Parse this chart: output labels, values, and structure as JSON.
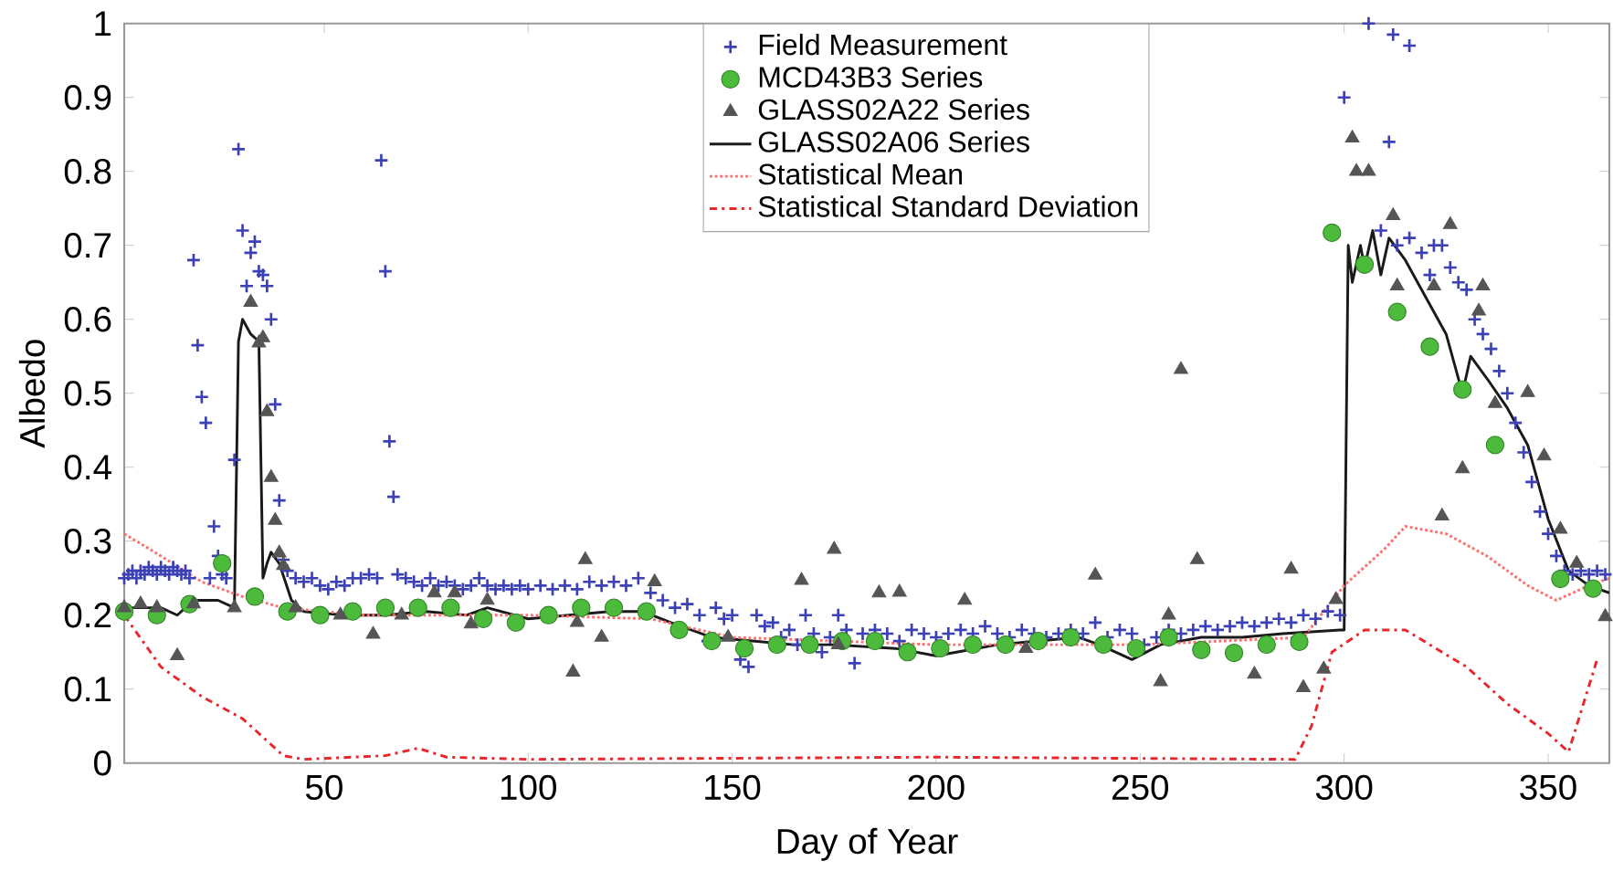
{
  "chart_data": {
    "type": "scatter",
    "xlabel": "Day of Year",
    "ylabel": "Albedo",
    "xlim": [
      1,
      365
    ],
    "ylim": [
      0,
      1
    ],
    "xticks": [
      50,
      100,
      150,
      200,
      250,
      300,
      350
    ],
    "yticks": [
      0,
      0.1,
      0.2,
      0.3,
      0.4,
      0.5,
      0.6,
      0.7,
      0.8,
      0.9,
      1
    ],
    "grid": false,
    "legend": "top",
    "series": [
      {
        "name": "Field Measurement",
        "marker": "cross",
        "color": "#3b40b4",
        "x": [
          1,
          2,
          3,
          4,
          5,
          6,
          7,
          8,
          9,
          10,
          11,
          12,
          13,
          14,
          15,
          16,
          17,
          18,
          19,
          20,
          21,
          22,
          23,
          24,
          25,
          26,
          28,
          29,
          30,
          31,
          32,
          33,
          34,
          35,
          36,
          37,
          38,
          39,
          40,
          41,
          43,
          45,
          47,
          49,
          51,
          53,
          55,
          57,
          59,
          61,
          63,
          64,
          65,
          66,
          67,
          68,
          70,
          72,
          74,
          76,
          78,
          80,
          82,
          84,
          86,
          88,
          90,
          92,
          94,
          96,
          98,
          100,
          103,
          106,
          109,
          112,
          115,
          118,
          121,
          124,
          127,
          130,
          133,
          136,
          139,
          142,
          144,
          146,
          148,
          150,
          152,
          154,
          156,
          158,
          160,
          162,
          164,
          166,
          168,
          170,
          172,
          174,
          176,
          178,
          180,
          182,
          185,
          188,
          191,
          194,
          197,
          200,
          203,
          206,
          209,
          212,
          215,
          218,
          221,
          224,
          227,
          230,
          233,
          236,
          239,
          242,
          245,
          248,
          251,
          254,
          257,
          260,
          263,
          266,
          269,
          272,
          275,
          278,
          281,
          284,
          287,
          290,
          293,
          296,
          299,
          300,
          306,
          309,
          311,
          312,
          313,
          316,
          316,
          319,
          321,
          322,
          324,
          326,
          328,
          330,
          332,
          334,
          336,
          338,
          340,
          342,
          344,
          346,
          348,
          350,
          352,
          354,
          356,
          358,
          360,
          362,
          364
        ],
        "values": [
          0.25,
          0.255,
          0.26,
          0.25,
          0.26,
          0.255,
          0.265,
          0.26,
          0.255,
          0.265,
          0.26,
          0.255,
          0.265,
          0.26,
          0.255,
          0.26,
          0.25,
          0.68,
          0.565,
          0.495,
          0.46,
          0.25,
          0.32,
          0.28,
          0.255,
          0.25,
          0.41,
          0.83,
          0.72,
          0.645,
          0.69,
          0.705,
          0.665,
          0.66,
          0.645,
          0.6,
          0.485,
          0.355,
          0.275,
          0.26,
          0.25,
          0.245,
          0.25,
          0.24,
          0.235,
          0.245,
          0.24,
          0.25,
          0.25,
          0.255,
          0.25,
          0.815,
          0.665,
          0.435,
          0.36,
          0.255,
          0.25,
          0.245,
          0.24,
          0.25,
          0.24,
          0.245,
          0.24,
          0.235,
          0.24,
          0.25,
          0.24,
          0.235,
          0.24,
          0.235,
          0.24,
          0.235,
          0.24,
          0.235,
          0.24,
          0.235,
          0.245,
          0.24,
          0.245,
          0.24,
          0.25,
          0.23,
          0.22,
          0.21,
          0.215,
          0.2,
          0.165,
          0.21,
          0.195,
          0.2,
          0.14,
          0.13,
          0.2,
          0.185,
          0.19,
          0.17,
          0.18,
          0.16,
          0.2,
          0.175,
          0.15,
          0.17,
          0.2,
          0.18,
          0.135,
          0.175,
          0.18,
          0.175,
          0.165,
          0.18,
          0.175,
          0.17,
          0.175,
          0.18,
          0.175,
          0.185,
          0.175,
          0.17,
          0.18,
          0.175,
          0.17,
          0.175,
          0.18,
          0.175,
          0.19,
          0.17,
          0.18,
          0.175,
          0.16,
          0.17,
          0.18,
          0.175,
          0.18,
          0.185,
          0.18,
          0.185,
          0.19,
          0.185,
          0.19,
          0.195,
          0.19,
          0.2,
          0.195,
          0.205,
          0.2,
          0.9,
          1.0,
          0.72,
          0.84,
          0.985,
          0.7,
          0.97,
          0.71,
          0.69,
          0.66,
          0.7,
          0.7,
          0.67,
          0.65,
          0.64,
          0.6,
          0.58,
          0.56,
          0.53,
          0.5,
          0.46,
          0.42,
          0.38,
          0.34,
          0.31,
          0.28,
          0.26,
          0.255,
          0.26,
          0.255,
          0.26,
          0.255
        ]
      },
      {
        "name": "MCD43B3 Series",
        "marker": "circle",
        "color": "#4cbb3c",
        "x": [
          1,
          9,
          17,
          25,
          33,
          41,
          49,
          57,
          65,
          73,
          81,
          89,
          97,
          105,
          113,
          121,
          129,
          137,
          145,
          153,
          161,
          169,
          177,
          185,
          193,
          201,
          209,
          217,
          225,
          233,
          241,
          249,
          257,
          265,
          273,
          281,
          289,
          297,
          305,
          313,
          321,
          329,
          337,
          353,
          361
        ],
        "values": [
          0.205,
          0.2,
          0.215,
          0.27,
          0.225,
          0.205,
          0.2,
          0.205,
          0.21,
          0.21,
          0.21,
          0.195,
          0.19,
          0.2,
          0.21,
          0.21,
          0.205,
          0.18,
          0.165,
          0.155,
          0.16,
          0.16,
          0.165,
          0.165,
          0.15,
          0.155,
          0.16,
          0.16,
          0.165,
          0.17,
          0.16,
          0.155,
          0.17,
          0.153,
          0.149,
          0.16,
          0.164,
          0.717,
          0.674,
          0.61,
          0.563,
          0.505,
          0.43,
          0.249,
          0.236
        ]
      },
      {
        "name": "GLASS02A22 Series",
        "marker": "triangle",
        "color": "#555555",
        "x": [
          1,
          5,
          9,
          14,
          18,
          28,
          32,
          34,
          35,
          36,
          37,
          38,
          39,
          40,
          43,
          54,
          62,
          69,
          77,
          82,
          86,
          90,
          111,
          112,
          114,
          118,
          131,
          149,
          167,
          175,
          176,
          186,
          191,
          207,
          222,
          239,
          255,
          257,
          260,
          264,
          278,
          287,
          290,
          295,
          298,
          302,
          303,
          306,
          312,
          313,
          322,
          324,
          326,
          329,
          333,
          334,
          337,
          345,
          349,
          353,
          357,
          364
        ],
        "values": [
          0.21,
          0.215,
          0.21,
          0.145,
          0.215,
          0.21,
          0.623,
          0.568,
          0.575,
          0.475,
          0.386,
          0.328,
          0.284,
          0.267,
          0.21,
          0.2,
          0.174,
          0.2,
          0.23,
          0.23,
          0.188,
          0.22,
          0.123,
          0.19,
          0.275,
          0.17,
          0.245,
          0.17,
          0.247,
          0.289,
          0.16,
          0.23,
          0.231,
          0.22,
          0.155,
          0.254,
          0.11,
          0.2,
          0.532,
          0.275,
          0.12,
          0.262,
          0.102,
          0.127,
          0.221,
          0.845,
          0.8,
          0.8,
          0.74,
          0.645,
          0.645,
          0.334,
          0.728,
          0.398,
          0.611,
          0.645,
          0.486,
          0.501,
          0.415,
          0.316,
          0.27,
          0.198
        ]
      },
      {
        "name": "GLASS02A06 Series",
        "type": "line",
        "line_style": "solid",
        "color": "#1a1a1a",
        "x": [
          1,
          10,
          14,
          18,
          24,
          28,
          29,
          30,
          32,
          34,
          35,
          36,
          37,
          39,
          42,
          45,
          55,
          65,
          75,
          85,
          90,
          100,
          110,
          120,
          128,
          135,
          145,
          155,
          165,
          175,
          190,
          200,
          205,
          215,
          225,
          235,
          240,
          248,
          255,
          265,
          275,
          285,
          299,
          300,
          301,
          302,
          304,
          305,
          307,
          309,
          311,
          315,
          320,
          325,
          329,
          331,
          335,
          340,
          345,
          350,
          355,
          360,
          365
        ],
        "values": [
          0.21,
          0.21,
          0.2,
          0.22,
          0.22,
          0.21,
          0.57,
          0.6,
          0.58,
          0.57,
          0.25,
          0.27,
          0.285,
          0.27,
          0.22,
          0.205,
          0.2,
          0.2,
          0.205,
          0.2,
          0.21,
          0.195,
          0.2,
          0.205,
          0.205,
          0.19,
          0.17,
          0.165,
          0.16,
          0.16,
          0.155,
          0.145,
          0.15,
          0.16,
          0.165,
          0.17,
          0.16,
          0.14,
          0.16,
          0.17,
          0.17,
          0.175,
          0.18,
          0.18,
          0.7,
          0.65,
          0.7,
          0.67,
          0.72,
          0.66,
          0.71,
          0.68,
          0.63,
          0.58,
          0.5,
          0.55,
          0.52,
          0.48,
          0.43,
          0.33,
          0.26,
          0.24,
          0.23
        ]
      },
      {
        "name": "Statistical Mean",
        "type": "line",
        "line_style": "dotted",
        "color": "#ff7070",
        "x": [
          1,
          10,
          20,
          30,
          40,
          60,
          100,
          130,
          150,
          200,
          250,
          290,
          300,
          310,
          315,
          325,
          335,
          345,
          352,
          360,
          365
        ],
        "values": [
          0.31,
          0.28,
          0.245,
          0.225,
          0.21,
          0.2,
          0.2,
          0.195,
          0.17,
          0.16,
          0.16,
          0.17,
          0.24,
          0.29,
          0.32,
          0.31,
          0.28,
          0.24,
          0.22,
          0.24,
          0.25
        ]
      },
      {
        "name": "Statistical Standard Deviation",
        "type": "line",
        "line_style": "dashdot",
        "color": "#e8262b",
        "x": [
          1,
          10,
          20,
          30,
          40,
          45,
          65,
          73,
          80,
          100,
          200,
          288,
          292,
          297,
          305,
          315,
          330,
          340,
          350,
          355,
          362
        ],
        "values": [
          0.2,
          0.13,
          0.09,
          0.06,
          0.01,
          0.005,
          0.01,
          0.02,
          0.008,
          0.005,
          0.008,
          0.005,
          0.05,
          0.15,
          0.18,
          0.18,
          0.13,
          0.08,
          0.04,
          0.015,
          0.14
        ]
      }
    ]
  }
}
